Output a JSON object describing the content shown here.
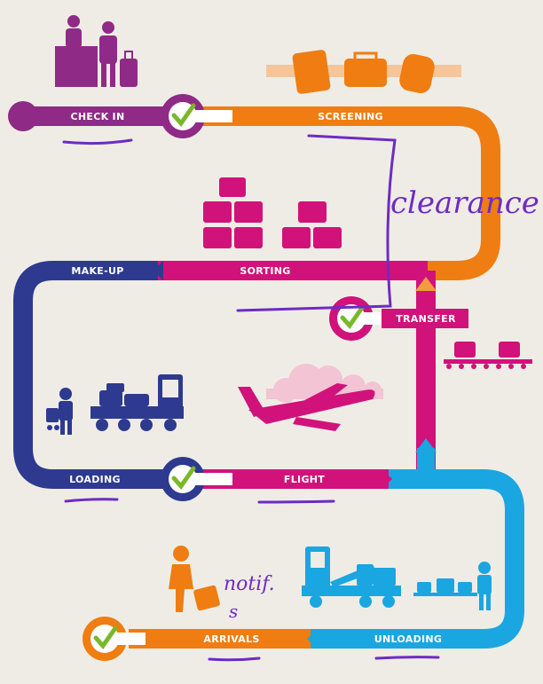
{
  "stages": {
    "check_in": "CHECK IN",
    "screening": "SCREENING",
    "sorting": "SORTING",
    "make_up": "MAKE-UP",
    "transfer": "TRANSFER",
    "loading": "LOADING",
    "flight": "FLIGHT",
    "unloading": "UNLOADING",
    "arrivals": "ARRIVALS"
  },
  "annotations": {
    "clearance": "clearance",
    "notif": "notif.",
    "notif_mark": "s"
  },
  "colors": {
    "background": "#efece6",
    "check_in": "#8f2a86",
    "screening": "#ef7d11",
    "sorting": "#d1127a",
    "make_up": "#2d3a8f",
    "unloading": "#1aa6e0",
    "check_green": "#7ab829",
    "handwriting": "#6d2bc4"
  },
  "icons": [
    "check-in-desk-icon",
    "luggage-group-icon",
    "stacked-suitcases-icon",
    "baggage-conveyor-icon",
    "baggage-worker-icon",
    "baggage-tug-icon",
    "airplane-icon",
    "cloud-icon",
    "traveler-with-luggage-icon",
    "unloading-truck-icon",
    "unloading-worker-icon",
    "checkmark-icon"
  ]
}
